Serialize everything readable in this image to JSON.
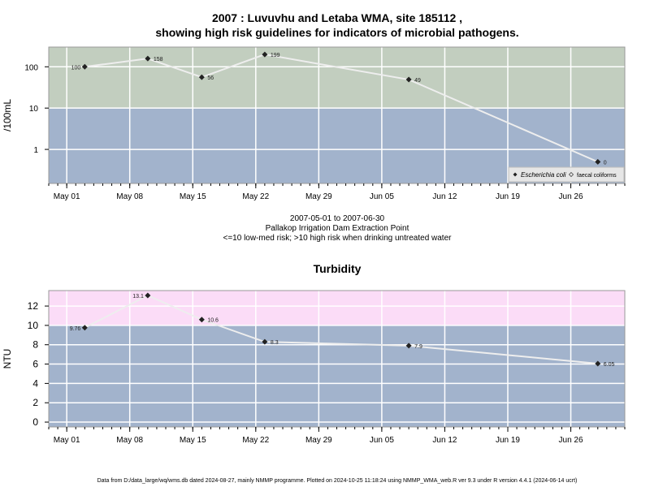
{
  "chart_data": [
    {
      "type": "line",
      "title_line1": "2007 : Luvuvhu and Letaba WMA, site 185112 ,",
      "title_line2": "showing high risk guidelines for indicators of microbial pathogens.",
      "ylabel": "/100mL",
      "y_scale": "log",
      "y_ticks": [
        1,
        10,
        100
      ],
      "y_tick_labels": [
        "1",
        "10",
        "100"
      ],
      "x_ticks": [
        "May 01",
        "May 08",
        "May 15",
        "May 22",
        "May 29",
        "Jun 05",
        "Jun 12",
        "Jun 19",
        "Jun 26"
      ],
      "x_tick_dates": [
        "2007-05-01",
        "2007-05-08",
        "2007-05-15",
        "2007-05-22",
        "2007-05-29",
        "2007-06-05",
        "2007-06-12",
        "2007-06-19",
        "2007-06-26"
      ],
      "x_range": [
        "2007-04-29",
        "2007-07-02"
      ],
      "grid": true,
      "bands": [
        {
          "from": 10,
          "to": 300,
          "color": "#c2cebf"
        },
        {
          "from": 0.15,
          "to": 10,
          "color": "#a2b3cc"
        }
      ],
      "series": [
        {
          "name": "Escherichia coli",
          "marker": "filled-diamond",
          "x": [
            "2007-05-03",
            "2007-05-10",
            "2007-05-16",
            "2007-05-23",
            "2007-06-08",
            "2007-06-29"
          ],
          "values": [
            100,
            158,
            56,
            199,
            49,
            0
          ],
          "labels": [
            "100",
            "158",
            "56",
            "199",
            "49",
            "0"
          ],
          "plot_values": [
            100,
            158,
            56,
            199,
            49,
            0.5
          ],
          "label_sides": [
            "left",
            "right",
            "right",
            "right",
            "right",
            "right"
          ]
        },
        {
          "name": "faecal coliforms",
          "marker": "open-diamond",
          "x": [],
          "values": [],
          "labels": []
        }
      ],
      "legend_position": "bottom-right",
      "below_text": [
        "2007-05-01 to 2007-06-30",
        "Pallakop Irrigation Dam Extraction Point",
        "<=10 low-med risk; >10 high risk when drinking untreated water"
      ]
    },
    {
      "type": "line",
      "title": "Turbidity",
      "ylabel": "NTU",
      "ylim": [
        -0.5,
        13.6
      ],
      "y_ticks": [
        0,
        2,
        4,
        6,
        8,
        10,
        12
      ],
      "y_tick_labels": [
        "0",
        "2",
        "4",
        "6",
        "8",
        "10",
        "12"
      ],
      "x_ticks": [
        "May 01",
        "May 08",
        "May 15",
        "May 22",
        "May 29",
        "Jun 05",
        "Jun 12",
        "Jun 19",
        "Jun 26"
      ],
      "x_tick_dates": [
        "2007-05-01",
        "2007-05-08",
        "2007-05-15",
        "2007-05-22",
        "2007-05-29",
        "2007-06-05",
        "2007-06-12",
        "2007-06-19",
        "2007-06-26"
      ],
      "x_range": [
        "2007-04-29",
        "2007-07-02"
      ],
      "grid": true,
      "bands": [
        {
          "from": 10,
          "to": 13.6,
          "color": "#fbdcf7"
        },
        {
          "from": -0.5,
          "to": 10,
          "color": "#a2b3cc"
        }
      ],
      "series": [
        {
          "name": "Turbidity",
          "marker": "filled-diamond",
          "x": [
            "2007-05-03",
            "2007-05-10",
            "2007-05-16",
            "2007-05-23",
            "2007-06-08",
            "2007-06-29"
          ],
          "values": [
            9.76,
            13.1,
            10.6,
            8.3,
            7.9,
            6.05
          ],
          "labels": [
            "9.76",
            "13.1",
            "10.6",
            "8.3",
            "7.9",
            "6.05"
          ],
          "label_sides": [
            "left",
            "left",
            "right",
            "right",
            "right",
            "right"
          ]
        }
      ]
    }
  ],
  "footer": "Data from D:/data_large/wq/wms.db dated 2024-08-27, mainly NMMP programme. Plotted on 2024-10-25 11:18:24 using NMMP_WMA_web.R ver 9.3 under R version 4.4.1 (2024-06-14 ucrt)"
}
